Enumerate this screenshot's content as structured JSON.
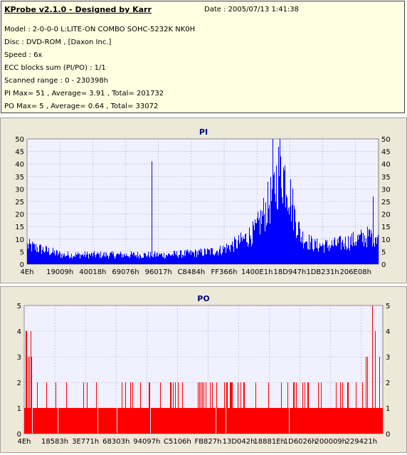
{
  "header": {
    "title": "KProbe v2.1.0 - Designed by Karr",
    "date": "Date : 2005/07/13 1:41:38",
    "lines": [
      "Model : 2-0-0-0 L:LITE-ON COMBO SOHC-5232K NK0H",
      "Disc : DVD-ROM ,  [Daxon Inc.]",
      "Speed : 6x",
      "ECC blocks sum (PI/PO) : 1/1",
      "Scanned range : 0 - 230398h",
      "PI Max= 51 , Average= 3.91 , Total= 201732",
      "PO Max= 5 , Average= 0.64 , Total= 33072"
    ]
  },
  "colors": {
    "panel_bg": "#ffffe1",
    "plot_bg": "#f0f0ff",
    "pi": "#0000ff",
    "po": "#ff0000",
    "frame": "#ece9d8"
  },
  "chart_data": [
    {
      "type": "bar",
      "title": "PI",
      "ylim": [
        0,
        50
      ],
      "yticks": [
        0,
        5,
        10,
        15,
        20,
        25,
        30,
        35,
        40,
        45,
        50
      ],
      "xticks": [
        "4Eh",
        "19009h",
        "40018h",
        "69076h",
        "96017h",
        "C8484h",
        "FF366h",
        "1400E1h",
        "18D947h",
        "1DB231h",
        "206E08h"
      ],
      "grid": true,
      "spikes": [
        {
          "at": 0.355,
          "value": 41
        },
        {
          "at": 0.986,
          "value": 27
        },
        {
          "at": 0.7,
          "value": 51
        }
      ],
      "series": [
        {
          "x": [
            0,
            0.05,
            0.1,
            0.2,
            0.3,
            0.4,
            0.5,
            0.55,
            0.6,
            0.65,
            0.7,
            0.72,
            0.74,
            0.76,
            0.78,
            0.82,
            0.86,
            0.9,
            0.95,
            1.0
          ],
          "values": [
            8,
            6,
            4,
            4,
            4,
            4,
            5,
            6,
            9,
            14,
            30,
            42,
            36,
            22,
            12,
            8,
            8,
            9,
            11,
            13
          ]
        }
      ]
    },
    {
      "type": "bar",
      "title": "PO",
      "ylim": [
        0,
        5
      ],
      "yticks": [
        0,
        1,
        2,
        3,
        4,
        5
      ],
      "xticks": [
        "4Eh",
        "18583h",
        "3E771h",
        "68303h",
        "94097h",
        "C5106h",
        "FB827h",
        "13D042h",
        "18881Eh",
        "1D6026h",
        "200009h",
        "229421h"
      ],
      "grid": true,
      "spikes": [
        {
          "at": 0.005,
          "value": 4
        },
        {
          "at": 0.018,
          "value": 4
        },
        {
          "at": 0.972,
          "value": 5
        },
        {
          "at": 0.98,
          "value": 4
        }
      ],
      "series": [
        {
          "baseline": 1,
          "x": [
            0,
            0.05,
            0.1,
            0.2,
            0.3,
            0.4,
            0.5,
            0.6,
            0.7,
            0.8,
            0.9,
            1.0
          ],
          "occasional_peaks": [
            3,
            2,
            2,
            2,
            2,
            2,
            2,
            2,
            2,
            2,
            2,
            3
          ]
        }
      ]
    }
  ]
}
